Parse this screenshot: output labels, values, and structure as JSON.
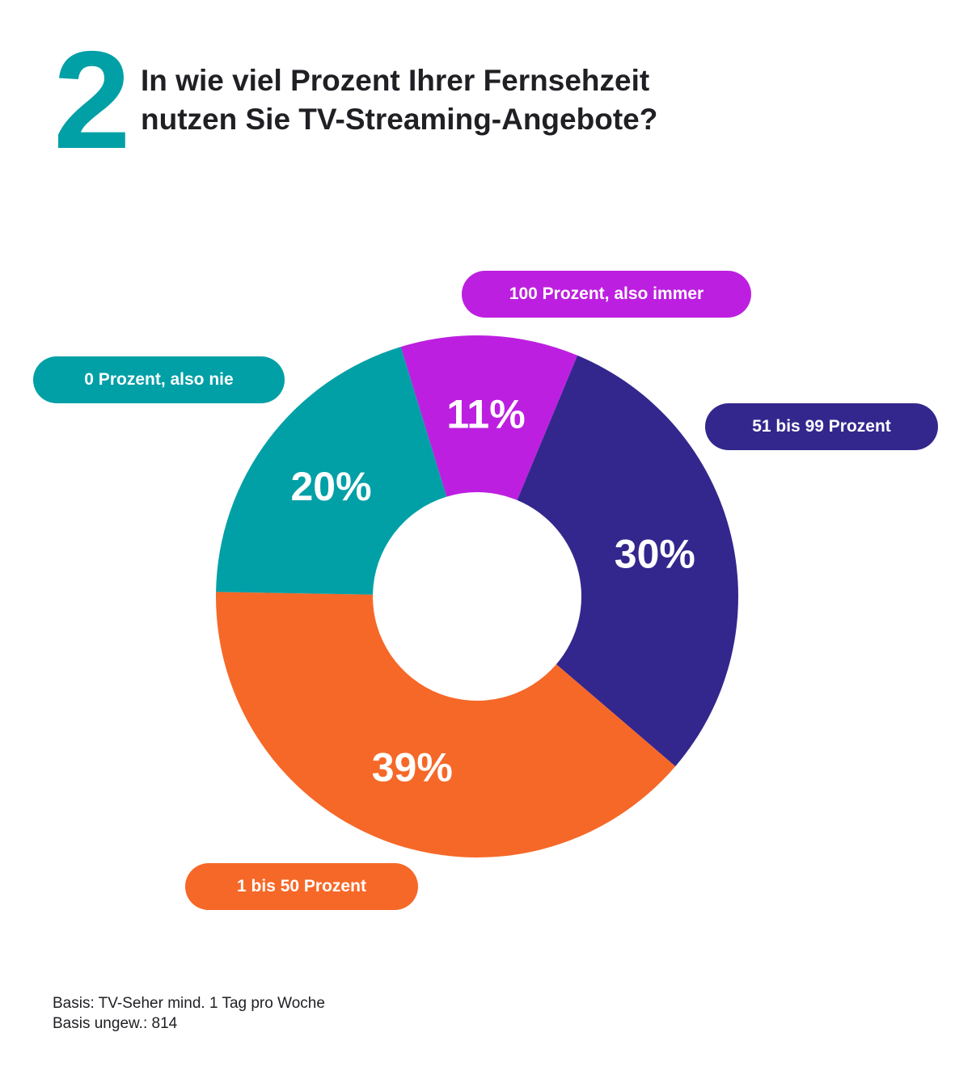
{
  "header": {
    "number": "2",
    "title_line1": "In wie viel Prozent Ihrer Fernsehzeit",
    "title_line2": "nutzen Sie TV-Streaming-Angebote?"
  },
  "chart_data": {
    "type": "pie",
    "donut": true,
    "start_angle_deg": -17,
    "slices": [
      {
        "label": "100 Prozent, also immer",
        "value": 11,
        "value_label": "11%",
        "color": "#bd1fe0"
      },
      {
        "label": "51 bis 99 Prozent",
        "value": 30,
        "value_label": "30%",
        "color": "#33278d"
      },
      {
        "label": "1 bis 50 Prozent",
        "value": 39,
        "value_label": "39%",
        "color": "#f66828"
      },
      {
        "label": "0 Prozent, also nie",
        "value": 20,
        "value_label": "20%",
        "color": "#00a0a6"
      }
    ]
  },
  "footnote": {
    "line1": "Basis: TV-Seher mind. 1 Tag pro Woche",
    "line2": "Basis ungew.: 814"
  }
}
